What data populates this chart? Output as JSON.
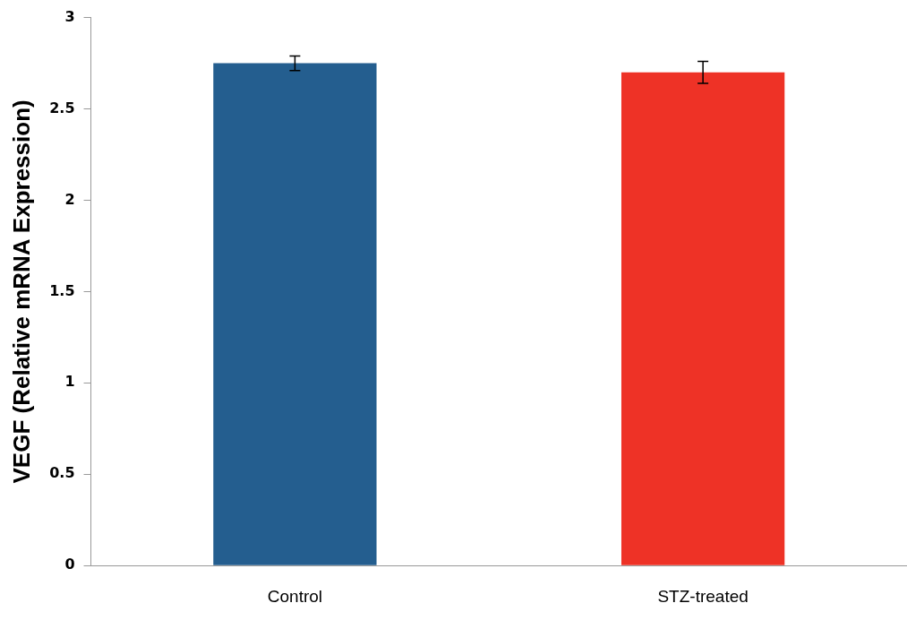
{
  "chart_data": {
    "type": "bar",
    "ylabel": "VEGF (Relative mRNA Expression)",
    "categories": [
      "Control",
      "STZ-treated"
    ],
    "values": [
      2.75,
      2.7
    ],
    "colors": [
      "#245e8f",
      "#ee3226"
    ],
    "errors": [
      0.04,
      0.06
    ],
    "ylim": [
      0,
      3
    ],
    "yticks": [
      0,
      0.5,
      1,
      1.5,
      2,
      2.5,
      3
    ],
    "grid": false,
    "legend": false
  }
}
